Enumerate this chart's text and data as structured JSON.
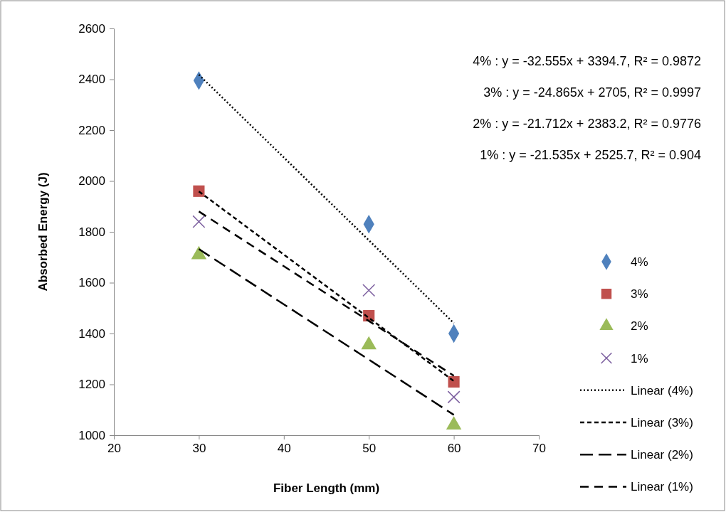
{
  "chart_data": {
    "type": "scatter",
    "xlabel": "Fiber Length (mm)",
    "ylabel": "Absorbed Energy (J)",
    "xlim": [
      20,
      70
    ],
    "xticks": [
      20,
      30,
      40,
      50,
      60,
      70
    ],
    "ylim": [
      1000,
      2600
    ],
    "yticks": [
      1000,
      1200,
      1400,
      1600,
      1800,
      2000,
      2200,
      2400,
      2600
    ],
    "grid": false,
    "legend": "right",
    "annotations": [
      "4% : y = -32.555x + 3394.7, R² = 0.9872",
      "3% : y = -24.865x + 2705, R² = 0.9997",
      "2% : y = -21.712x + 2383.2, R² = 0.9776",
      "1% : y = -21.535x + 2525.7, R² = 0.904"
    ],
    "series": [
      {
        "name": "4%",
        "marker": "diamond",
        "color": "#4f81bd",
        "x": [
          30,
          50,
          60
        ],
        "values": [
          2395,
          1830,
          1400
        ]
      },
      {
        "name": "3%",
        "marker": "square",
        "color": "#c0504d",
        "x": [
          30,
          50,
          60
        ],
        "values": [
          1960,
          1470,
          1210
        ]
      },
      {
        "name": "2%",
        "marker": "triangle",
        "color": "#9bbb59",
        "x": [
          30,
          50,
          60
        ],
        "values": [
          1710,
          1355,
          1040
        ]
      },
      {
        "name": "1%",
        "marker": "cross",
        "color": "#8064a2",
        "x": [
          30,
          50,
          60
        ],
        "values": [
          1840,
          1570,
          1150
        ]
      },
      {
        "name": "Linear (4%)",
        "type": "line",
        "line_style": "dotted",
        "color": "#000000",
        "x": [
          30,
          60
        ],
        "values": [
          2418,
          1441
        ]
      },
      {
        "name": "Linear (3%)",
        "type": "line",
        "line_style": "dashed",
        "color": "#000000",
        "x": [
          30,
          60
        ],
        "values": [
          1959,
          1213
        ]
      },
      {
        "name": "Linear (2%)",
        "type": "line",
        "line_style": "dashed",
        "color": "#000000",
        "x": [
          30,
          60
        ],
        "values": [
          1732,
          1080
        ]
      },
      {
        "name": "Linear (1%)",
        "type": "line",
        "line_style": "dashed",
        "color": "#000000",
        "x": [
          30,
          60
        ],
        "values": [
          1880,
          1234
        ]
      }
    ]
  }
}
